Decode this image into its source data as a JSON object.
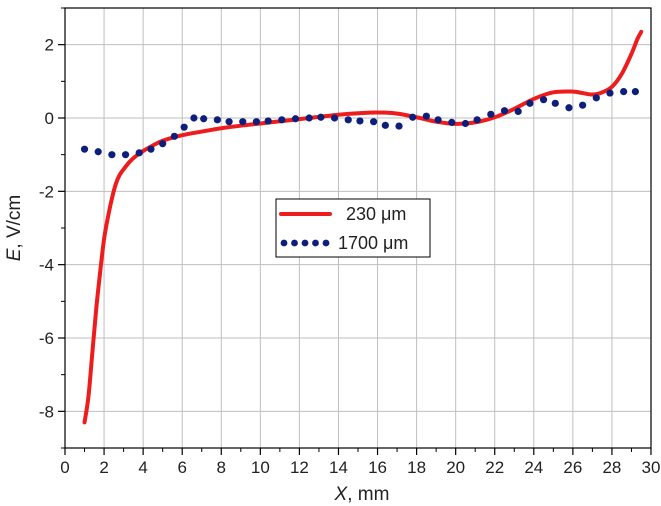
{
  "chart_data": {
    "type": "line",
    "title": "",
    "xlabel": {
      "var": "X",
      "unit": ", mm"
    },
    "ylabel": {
      "var": "E",
      "unit": ", V/cm"
    },
    "xlim": [
      0,
      30
    ],
    "ylim": [
      -9,
      3
    ],
    "xticks": [
      0,
      2,
      4,
      6,
      8,
      10,
      12,
      14,
      16,
      18,
      20,
      22,
      24,
      26,
      28,
      30
    ],
    "yticks": [
      -8,
      -6,
      -4,
      -2,
      0,
      2
    ],
    "grid": true,
    "legend_position": "center",
    "series": [
      {
        "name": "230 μm",
        "style": "solid",
        "color": "#ee1c1c",
        "x": [
          1.0,
          1.2,
          1.4,
          1.6,
          1.8,
          2.0,
          2.2,
          2.4,
          2.6,
          2.8,
          3.0,
          3.3,
          3.6,
          4.0,
          4.5,
          5.0,
          6.0,
          7.0,
          8.0,
          9.0,
          10.0,
          11.0,
          12.0,
          13.0,
          14.0,
          15.0,
          16.0,
          17.0,
          18.0,
          19.0,
          20.0,
          21.0,
          22.0,
          23.0,
          24.0,
          25.0,
          26.0,
          26.5,
          27.0,
          27.5,
          28.0,
          28.5,
          29.0,
          29.3,
          29.5
        ],
        "y": [
          -8.3,
          -7.6,
          -6.4,
          -5.2,
          -4.2,
          -3.3,
          -2.7,
          -2.2,
          -1.8,
          -1.55,
          -1.4,
          -1.2,
          -1.05,
          -0.9,
          -0.75,
          -0.62,
          -0.47,
          -0.37,
          -0.28,
          -0.21,
          -0.15,
          -0.09,
          -0.03,
          0.03,
          0.09,
          0.13,
          0.15,
          0.12,
          0.02,
          -0.1,
          -0.16,
          -0.12,
          0.02,
          0.25,
          0.52,
          0.7,
          0.72,
          0.68,
          0.64,
          0.7,
          0.85,
          1.2,
          1.75,
          2.15,
          2.35
        ]
      },
      {
        "name": "1700 μm",
        "style": "dotted",
        "color": "#0d1f7a",
        "x": [
          1.0,
          1.7,
          2.4,
          3.1,
          3.8,
          4.4,
          5.0,
          5.6,
          6.1,
          6.6,
          7.1,
          7.8,
          8.4,
          9.1,
          9.8,
          10.4,
          11.1,
          11.8,
          12.5,
          13.1,
          13.8,
          14.5,
          15.1,
          15.8,
          16.4,
          17.1,
          17.8,
          18.5,
          19.1,
          19.8,
          20.5,
          21.1,
          21.8,
          22.5,
          23.2,
          23.8,
          24.5,
          25.1,
          25.8,
          26.5,
          27.2,
          27.9,
          28.6,
          29.2
        ],
        "y": [
          -0.85,
          -0.92,
          -1.0,
          -1.0,
          -0.95,
          -0.85,
          -0.7,
          -0.5,
          -0.25,
          0.0,
          -0.02,
          -0.05,
          -0.1,
          -0.1,
          -0.1,
          -0.08,
          -0.05,
          -0.02,
          0.0,
          0.02,
          0.0,
          -0.05,
          -0.08,
          -0.1,
          -0.2,
          -0.22,
          0.02,
          0.05,
          -0.05,
          -0.12,
          -0.15,
          -0.05,
          0.1,
          0.2,
          0.18,
          0.4,
          0.5,
          0.4,
          0.28,
          0.35,
          0.55,
          0.68,
          0.72,
          0.72
        ]
      }
    ]
  }
}
